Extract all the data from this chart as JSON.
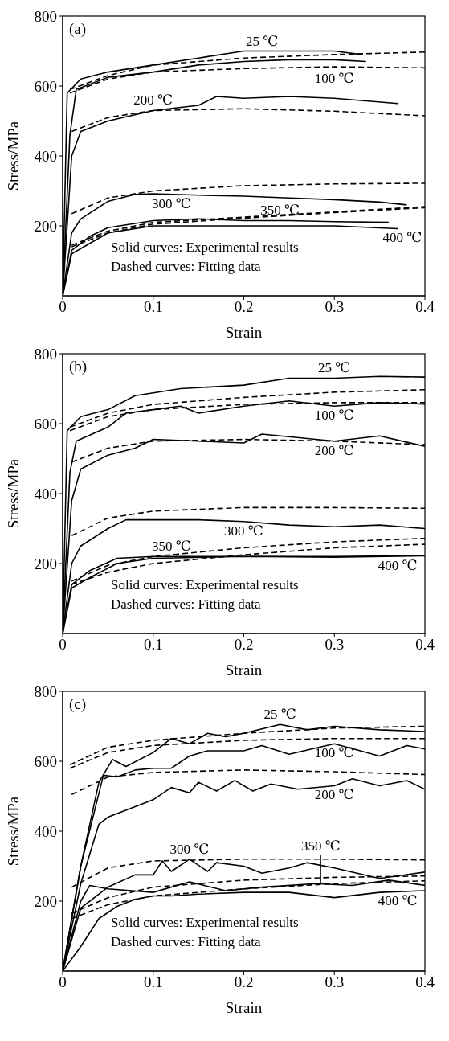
{
  "chart_data": [
    {
      "type": "line",
      "xlabel": "Strain",
      "ylabel": "Stress/MPa",
      "xlim": [
        0,
        0.4
      ],
      "ylim": [
        0,
        800
      ],
      "xticks": [
        0,
        0.1,
        0.2,
        0.3,
        0.4
      ],
      "yticks": [
        200,
        400,
        600,
        800
      ],
      "grid": false,
      "annotations": [
        "(a)",
        "Solid curves: Experimental results",
        "Dashed curves: Fitting data"
      ],
      "series": [
        {
          "name": "25 ℃",
          "color": "#000000",
          "line_style": "solid",
          "x": [
            0,
            0.005,
            0.02,
            0.05,
            0.1,
            0.15,
            0.2,
            0.25,
            0.3,
            0.33
          ],
          "values": [
            0,
            580,
            620,
            640,
            660,
            680,
            700,
            700,
            700,
            690
          ]
        },
        {
          "name": "100 ℃",
          "color": "#000000",
          "line_style": "solid",
          "x": [
            0,
            0.008,
            0.015,
            0.05,
            0.1,
            0.15,
            0.2,
            0.25,
            0.3,
            0.335
          ],
          "values": [
            0,
            460,
            590,
            625,
            640,
            660,
            670,
            675,
            675,
            670
          ]
        },
        {
          "name": "200 ℃",
          "color": "#000000",
          "line_style": "solid",
          "x": [
            0,
            0.01,
            0.02,
            0.05,
            0.1,
            0.15,
            0.17,
            0.2,
            0.25,
            0.3,
            0.37
          ],
          "values": [
            0,
            400,
            470,
            500,
            530,
            545,
            570,
            565,
            570,
            565,
            550
          ]
        },
        {
          "name": "300 ℃",
          "color": "#000000",
          "line_style": "solid",
          "x": [
            0,
            0.01,
            0.02,
            0.05,
            0.08,
            0.1,
            0.15,
            0.2,
            0.25,
            0.3,
            0.35,
            0.38
          ],
          "values": [
            0,
            180,
            220,
            270,
            290,
            292,
            288,
            285,
            280,
            275,
            268,
            260
          ]
        },
        {
          "name": "350 ℃",
          "color": "#000000",
          "line_style": "solid",
          "x": [
            0,
            0.01,
            0.03,
            0.05,
            0.1,
            0.15,
            0.2,
            0.25,
            0.3,
            0.36
          ],
          "values": [
            0,
            130,
            170,
            195,
            215,
            220,
            215,
            215,
            212,
            210
          ]
        },
        {
          "name": "400 ℃",
          "color": "#000000",
          "line_style": "solid",
          "x": [
            0,
            0.01,
            0.03,
            0.05,
            0.1,
            0.15,
            0.2,
            0.25,
            0.3,
            0.37
          ],
          "values": [
            0,
            120,
            150,
            180,
            200,
            200,
            200,
            200,
            200,
            192
          ]
        },
        {
          "color": "#000000",
          "line_style": "dashed",
          "x": [
            0.008,
            0.05,
            0.1,
            0.2,
            0.3,
            0.4
          ],
          "values": [
            590,
            630,
            660,
            680,
            690,
            697
          ]
        },
        {
          "color": "#000000",
          "line_style": "dashed",
          "x": [
            0.008,
            0.05,
            0.1,
            0.2,
            0.3,
            0.4
          ],
          "values": [
            580,
            620,
            640,
            650,
            655,
            652
          ]
        },
        {
          "color": "#000000",
          "line_style": "dashed",
          "x": [
            0.01,
            0.05,
            0.1,
            0.2,
            0.3,
            0.4
          ],
          "values": [
            470,
            510,
            530,
            535,
            528,
            515
          ]
        },
        {
          "color": "#000000",
          "line_style": "dashed",
          "x": [
            0.01,
            0.05,
            0.1,
            0.2,
            0.3,
            0.4
          ],
          "values": [
            235,
            280,
            300,
            315,
            320,
            322
          ]
        },
        {
          "color": "#000000",
          "line_style": "dashed",
          "x": [
            0.01,
            0.05,
            0.1,
            0.2,
            0.3,
            0.4
          ],
          "values": [
            145,
            185,
            210,
            225,
            240,
            255
          ]
        },
        {
          "color": "#000000",
          "line_style": "dashed",
          "x": [
            0.01,
            0.05,
            0.1,
            0.2,
            0.3,
            0.4
          ],
          "values": [
            140,
            180,
            205,
            222,
            238,
            252
          ]
        }
      ]
    },
    {
      "type": "line",
      "xlabel": "Strain",
      "ylabel": "Stress/MPa",
      "xlim": [
        0,
        0.4
      ],
      "ylim": [
        0,
        800
      ],
      "xticks": [
        0,
        0.1,
        0.2,
        0.3,
        0.4
      ],
      "yticks": [
        200,
        400,
        600,
        800
      ],
      "grid": false,
      "annotations": [
        "(b)",
        "Solid curves: Experimental results",
        "Dashed curves: Fitting data"
      ],
      "series": [
        {
          "name": "25 ℃",
          "color": "#000000",
          "line_style": "solid",
          "x": [
            0,
            0.005,
            0.02,
            0.05,
            0.08,
            0.13,
            0.2,
            0.25,
            0.3,
            0.35,
            0.4
          ],
          "values": [
            0,
            580,
            620,
            640,
            680,
            700,
            710,
            730,
            730,
            735,
            733
          ]
        },
        {
          "name": "100 ℃",
          "color": "#000000",
          "line_style": "solid",
          "x": [
            0,
            0.008,
            0.015,
            0.05,
            0.07,
            0.1,
            0.13,
            0.15,
            0.2,
            0.25,
            0.3,
            0.35,
            0.4
          ],
          "values": [
            0,
            460,
            550,
            590,
            630,
            640,
            650,
            630,
            650,
            665,
            650,
            660,
            656
          ]
        },
        {
          "name": "200 ℃",
          "color": "#000000",
          "line_style": "solid",
          "x": [
            0,
            0.01,
            0.02,
            0.05,
            0.08,
            0.1,
            0.15,
            0.2,
            0.22,
            0.3,
            0.35,
            0.4
          ],
          "values": [
            0,
            380,
            470,
            510,
            530,
            555,
            550,
            545,
            570,
            550,
            565,
            535
          ]
        },
        {
          "name": "300 ℃",
          "color": "#000000",
          "line_style": "solid",
          "x": [
            0,
            0.01,
            0.02,
            0.05,
            0.07,
            0.1,
            0.15,
            0.2,
            0.25,
            0.3,
            0.35,
            0.4
          ],
          "values": [
            0,
            200,
            250,
            300,
            325,
            325,
            325,
            320,
            310,
            305,
            310,
            300
          ]
        },
        {
          "name": "350 ℃",
          "color": "#000000",
          "line_style": "solid",
          "x": [
            0,
            0.01,
            0.03,
            0.06,
            0.1,
            0.2,
            0.3,
            0.4
          ],
          "values": [
            0,
            140,
            180,
            215,
            220,
            220,
            220,
            223
          ]
        },
        {
          "name": "400 ℃",
          "color": "#000000",
          "line_style": "solid",
          "x": [
            0,
            0.01,
            0.03,
            0.06,
            0.1,
            0.2,
            0.3,
            0.4
          ],
          "values": [
            0,
            130,
            160,
            200,
            215,
            220,
            218,
            222
          ]
        },
        {
          "color": "#000000",
          "line_style": "dashed",
          "x": [
            0.008,
            0.05,
            0.1,
            0.2,
            0.3,
            0.4
          ],
          "values": [
            590,
            630,
            655,
            675,
            690,
            697
          ]
        },
        {
          "color": "#000000",
          "line_style": "dashed",
          "x": [
            0.008,
            0.05,
            0.1,
            0.2,
            0.3,
            0.4
          ],
          "values": [
            580,
            620,
            640,
            655,
            660,
            660
          ]
        },
        {
          "color": "#000000",
          "line_style": "dashed",
          "x": [
            0.01,
            0.05,
            0.1,
            0.2,
            0.3,
            0.4
          ],
          "values": [
            490,
            530,
            550,
            555,
            550,
            540
          ]
        },
        {
          "color": "#000000",
          "line_style": "dashed",
          "x": [
            0.01,
            0.05,
            0.1,
            0.2,
            0.3,
            0.4
          ],
          "values": [
            280,
            330,
            350,
            360,
            360,
            358
          ]
        },
        {
          "color": "#000000",
          "line_style": "dashed",
          "x": [
            0.01,
            0.05,
            0.1,
            0.2,
            0.3,
            0.4
          ],
          "values": [
            150,
            195,
            220,
            245,
            262,
            272
          ]
        },
        {
          "color": "#000000",
          "line_style": "dashed",
          "x": [
            0.01,
            0.05,
            0.1,
            0.2,
            0.3,
            0.4
          ],
          "values": [
            140,
            175,
            200,
            225,
            245,
            255
          ]
        }
      ]
    },
    {
      "type": "line",
      "xlabel": "Strain",
      "ylabel": "Stress/MPa",
      "xlim": [
        0,
        0.4
      ],
      "ylim": [
        0,
        800
      ],
      "xticks": [
        0,
        0.1,
        0.2,
        0.3,
        0.4
      ],
      "yticks": [
        200,
        400,
        600,
        800
      ],
      "grid": false,
      "annotations": [
        "(c)",
        "Solid curves: Experimental results",
        "Dashed curves: Fitting data"
      ],
      "series": [
        {
          "name": "25 ℃",
          "color": "#000000",
          "line_style": "solid",
          "x": [
            0,
            0.02,
            0.04,
            0.055,
            0.07,
            0.1,
            0.12,
            0.14,
            0.16,
            0.18,
            0.2,
            0.24,
            0.27,
            0.3,
            0.35,
            0.4
          ],
          "values": [
            0,
            300,
            540,
            605,
            585,
            625,
            665,
            650,
            680,
            670,
            680,
            705,
            690,
            700,
            690,
            685
          ]
        },
        {
          "name": "100 ℃",
          "color": "#000000",
          "line_style": "solid",
          "x": [
            0,
            0.02,
            0.045,
            0.06,
            0.08,
            0.1,
            0.12,
            0.14,
            0.16,
            0.2,
            0.22,
            0.25,
            0.3,
            0.35,
            0.38,
            0.4
          ],
          "values": [
            0,
            300,
            560,
            555,
            575,
            580,
            580,
            615,
            630,
            630,
            645,
            620,
            650,
            615,
            645,
            635
          ]
        },
        {
          "name": "200 ℃",
          "color": "#000000",
          "line_style": "solid",
          "x": [
            0,
            0.02,
            0.04,
            0.05,
            0.08,
            0.1,
            0.12,
            0.14,
            0.15,
            0.17,
            0.19,
            0.21,
            0.23,
            0.26,
            0.3,
            0.32,
            0.35,
            0.38,
            0.4
          ],
          "values": [
            0,
            250,
            420,
            440,
            470,
            490,
            525,
            510,
            540,
            515,
            545,
            515,
            535,
            520,
            530,
            550,
            530,
            545,
            520
          ]
        },
        {
          "name": "300 ℃",
          "color": "#000000",
          "line_style": "solid",
          "x": [
            0,
            0.02,
            0.05,
            0.08,
            0.1,
            0.11,
            0.12,
            0.14,
            0.16,
            0.17,
            0.2,
            0.22,
            0.25,
            0.27,
            0.3,
            0.35,
            0.4
          ],
          "values": [
            0,
            180,
            240,
            275,
            275,
            315,
            285,
            320,
            285,
            310,
            300,
            280,
            295,
            310,
            295,
            265,
            283
          ]
        },
        {
          "name": "350 ℃",
          "color": "#000000",
          "line_style": "solid",
          "x": [
            0,
            0.02,
            0.03,
            0.05,
            0.1,
            0.14,
            0.18,
            0.22,
            0.28,
            0.32,
            0.36,
            0.4
          ],
          "values": [
            0,
            200,
            245,
            235,
            225,
            255,
            230,
            240,
            250,
            245,
            260,
            245
          ]
        },
        {
          "name": "400 ℃",
          "color": "#000000",
          "line_style": "solid",
          "x": [
            0,
            0.02,
            0.04,
            0.06,
            0.08,
            0.1,
            0.12,
            0.15,
            0.2,
            0.25,
            0.3,
            0.35,
            0.4
          ],
          "values": [
            0,
            70,
            150,
            185,
            205,
            215,
            215,
            220,
            225,
            225,
            210,
            225,
            230
          ]
        },
        {
          "color": "#000000",
          "line_style": "dashed",
          "x": [
            0.008,
            0.05,
            0.1,
            0.2,
            0.3,
            0.4
          ],
          "values": [
            590,
            640,
            660,
            680,
            695,
            700
          ]
        },
        {
          "color": "#000000",
          "line_style": "dashed",
          "x": [
            0.008,
            0.05,
            0.1,
            0.2,
            0.3,
            0.4
          ],
          "values": [
            580,
            625,
            645,
            660,
            665,
            665
          ]
        },
        {
          "color": "#000000",
          "line_style": "dashed",
          "x": [
            0.01,
            0.05,
            0.1,
            0.2,
            0.3,
            0.4
          ],
          "values": [
            505,
            555,
            568,
            575,
            570,
            562
          ]
        },
        {
          "color": "#000000",
          "line_style": "dashed",
          "x": [
            0.01,
            0.05,
            0.1,
            0.2,
            0.3,
            0.4
          ],
          "values": [
            240,
            295,
            315,
            320,
            320,
            318
          ]
        },
        {
          "color": "#000000",
          "line_style": "dashed",
          "x": [
            0.01,
            0.05,
            0.1,
            0.2,
            0.3,
            0.4
          ],
          "values": [
            165,
            210,
            240,
            260,
            268,
            272
          ]
        },
        {
          "color": "#000000",
          "line_style": "dashed",
          "x": [
            0.01,
            0.05,
            0.1,
            0.2,
            0.3,
            0.4
          ],
          "values": [
            150,
            190,
            215,
            235,
            250,
            258
          ]
        }
      ]
    }
  ]
}
